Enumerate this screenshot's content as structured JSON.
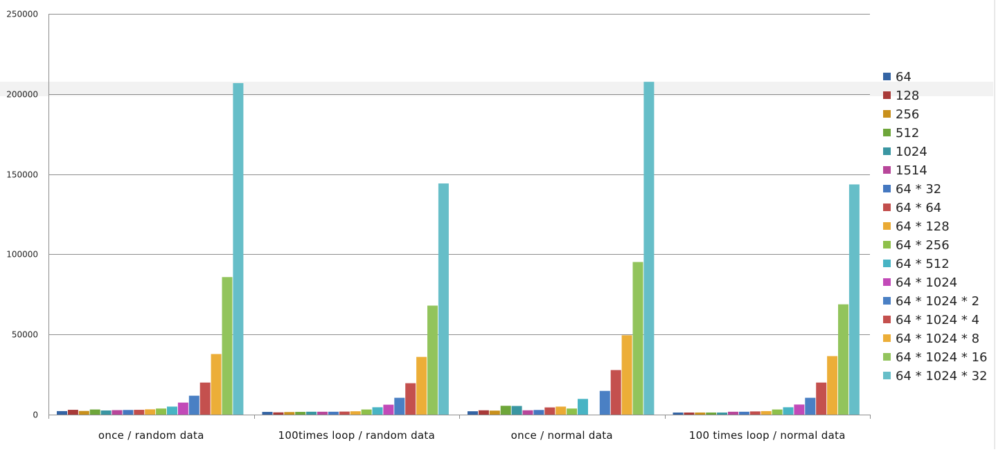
{
  "chart_data": {
    "type": "bar",
    "title": "",
    "xlabel": "",
    "ylabel": "",
    "ylim": [
      0,
      250000
    ],
    "yticks": [
      0,
      50000,
      100000,
      150000,
      200000,
      250000
    ],
    "ytick_labels": [
      "0",
      "50000",
      "100000",
      "150000",
      "200000",
      "250000"
    ],
    "grid": true,
    "legend_position": "right",
    "categories": [
      "once / random data",
      "100times loop / random data",
      "once / normal data",
      "100 times loop / normal data"
    ],
    "series": [
      {
        "name": "64",
        "color": "#3464a4",
        "values": [
          2200,
          1700,
          2100,
          1300
        ]
      },
      {
        "name": "128",
        "color": "#a83a38",
        "values": [
          3000,
          1400,
          2700,
          1300
        ]
      },
      {
        "name": "256",
        "color": "#c8901c",
        "values": [
          2300,
          1600,
          2500,
          1300
        ]
      },
      {
        "name": "512",
        "color": "#6ea63a",
        "values": [
          3200,
          1700,
          5500,
          1300
        ]
      },
      {
        "name": "1024",
        "color": "#3a96a2",
        "values": [
          2600,
          1800,
          5400,
          1300
        ]
      },
      {
        "name": "1514",
        "color": "#b8469a",
        "values": [
          2800,
          1800,
          2700,
          1800
        ]
      },
      {
        "name": "64 * 32",
        "color": "#4478c0",
        "values": [
          2900,
          1800,
          2900,
          1800
        ]
      },
      {
        "name": "64 * 64",
        "color": "#c24e4c",
        "values": [
          3000,
          1900,
          4500,
          2000
        ]
      },
      {
        "name": "64 * 128",
        "color": "#eaaa34",
        "values": [
          3300,
          2100,
          5000,
          2200
        ]
      },
      {
        "name": "64 * 256",
        "color": "#8ec04a",
        "values": [
          3800,
          3200,
          3800,
          3200
        ]
      },
      {
        "name": "64 * 512",
        "color": "#48b4c4",
        "values": [
          5000,
          4600,
          9800,
          4600
        ]
      },
      {
        "name": "64 * 1024",
        "color": "#c24ab8",
        "values": [
          7500,
          6200,
          0,
          6300
        ]
      },
      {
        "name": "64 * 1024 * 2",
        "color": "#4a80c4",
        "values": [
          11800,
          10500,
          14800,
          10500
        ]
      },
      {
        "name": "64 * 1024 * 4",
        "color": "#c4504e",
        "values": [
          20000,
          19600,
          27800,
          20000
        ]
      },
      {
        "name": "64 * 1024 * 8",
        "color": "#ecae38",
        "values": [
          37800,
          36000,
          49500,
          36500
        ]
      },
      {
        "name": "64 * 1024 * 16",
        "color": "#92c45c",
        "values": [
          85800,
          68000,
          95200,
          68800
        ]
      },
      {
        "name": "64 * 1024 * 32",
        "color": "#66bec8",
        "values": [
          206800,
          144200,
          207600,
          143600
        ]
      }
    ]
  }
}
